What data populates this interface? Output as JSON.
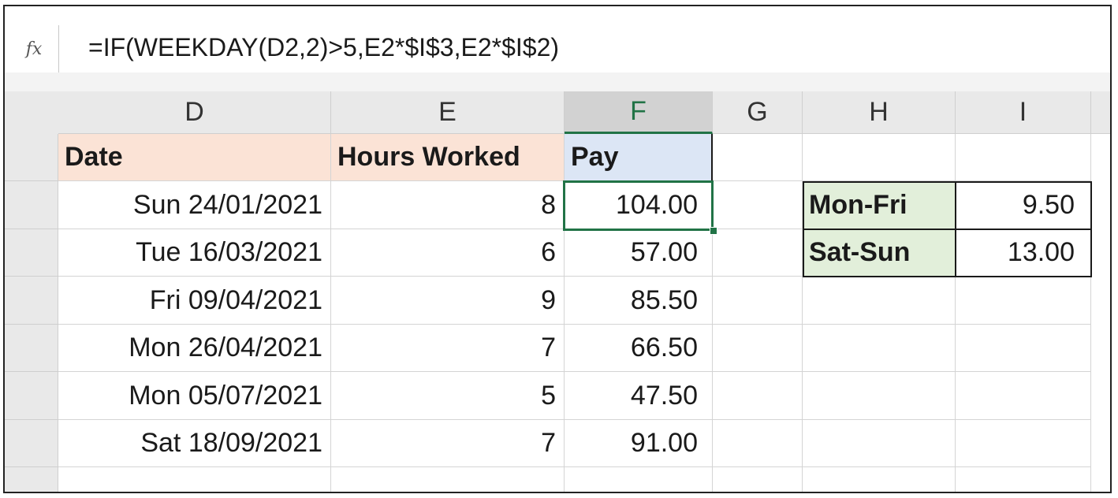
{
  "formula_bar": {
    "fx_label": "fx",
    "formula": "=IF(WEEKDAY(D2,2)>5,E2*$I$3,E2*$I$2)"
  },
  "columns": [
    "D",
    "E",
    "F",
    "G",
    "H",
    "I"
  ],
  "selected_column": "F",
  "table": {
    "headers": {
      "date": "Date",
      "hours": "Hours Worked",
      "pay": "Pay"
    },
    "rows": [
      {
        "date": "Sun 24/01/2021",
        "hours": "8",
        "pay": "104.00"
      },
      {
        "date": "Tue 16/03/2021",
        "hours": "6",
        "pay": "57.00"
      },
      {
        "date": "Fri 09/04/2021",
        "hours": "9",
        "pay": "85.50"
      },
      {
        "date": "Mon 26/04/2021",
        "hours": "7",
        "pay": "66.50"
      },
      {
        "date": "Mon 05/07/2021",
        "hours": "5",
        "pay": "47.50"
      },
      {
        "date": "Sat 18/09/2021",
        "hours": "7",
        "pay": "91.00"
      }
    ]
  },
  "rates": [
    {
      "label": "Mon-Fri",
      "value": "9.50"
    },
    {
      "label": "Sat-Sun",
      "value": "13.00"
    }
  ],
  "colors": {
    "header_date_fill": "#fbe3d6",
    "header_pay_fill": "#dce6f5",
    "rate_label_fill": "#e2efda",
    "selection": "#217346"
  }
}
